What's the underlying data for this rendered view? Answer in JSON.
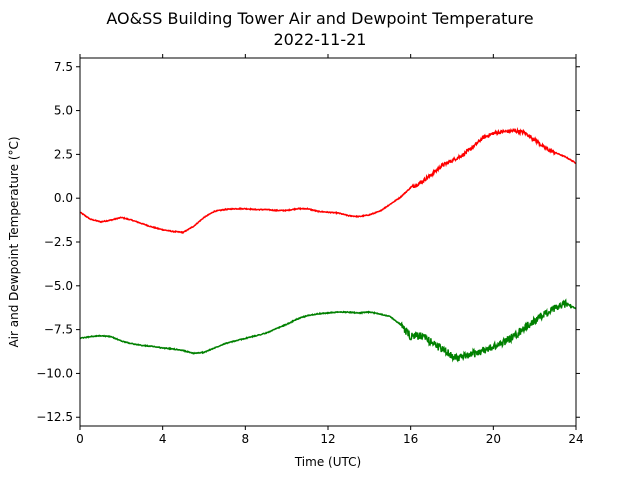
{
  "chart_data": {
    "type": "line",
    "title": "AO&SS Building Tower Air and Dewpoint Temperature",
    "subtitle": "2022-11-21",
    "xlabel": "Time (UTC)",
    "ylabel": "Air and Dewpoint Temperature (°C)",
    "xlim": [
      0,
      24
    ],
    "ylim": [
      -13,
      8
    ],
    "xticks": [
      0,
      4,
      8,
      12,
      16,
      20,
      24
    ],
    "yticks": [
      -12.5,
      -10.0,
      -7.5,
      -5.0,
      -2.5,
      0.0,
      2.5,
      5.0,
      7.5
    ],
    "ytick_labels": [
      "−12.5",
      "−10.0",
      "−7.5",
      "−5.0",
      "−2.5",
      "0.0",
      "2.5",
      "5.0",
      "7.5"
    ],
    "grid": false,
    "series": [
      {
        "color": "#ff0000",
        "points": [
          [
            0,
            -0.8
          ],
          [
            0.5,
            -1.2
          ],
          [
            1,
            -1.35
          ],
          [
            1.5,
            -1.25
          ],
          [
            2,
            -1.1
          ],
          [
            2.5,
            -1.25
          ],
          [
            3,
            -1.45
          ],
          [
            3.5,
            -1.65
          ],
          [
            4,
            -1.8
          ],
          [
            4.5,
            -1.9
          ],
          [
            5,
            -1.95
          ],
          [
            5.5,
            -1.6
          ],
          [
            6,
            -1.1
          ],
          [
            6.5,
            -0.75
          ],
          [
            7,
            -0.65
          ],
          [
            7.5,
            -0.6
          ],
          [
            8,
            -0.6
          ],
          [
            8.5,
            -0.65
          ],
          [
            9,
            -0.65
          ],
          [
            9.5,
            -0.7
          ],
          [
            10,
            -0.7
          ],
          [
            10.5,
            -0.6
          ],
          [
            11,
            -0.6
          ],
          [
            11.5,
            -0.75
          ],
          [
            12,
            -0.8
          ],
          [
            12.5,
            -0.85
          ],
          [
            13,
            -1.0
          ],
          [
            13.5,
            -1.05
          ],
          [
            14,
            -0.95
          ],
          [
            14.5,
            -0.75
          ],
          [
            15,
            -0.35
          ],
          [
            15.5,
            0.05
          ],
          [
            16,
            0.6
          ],
          [
            16.5,
            0.9
          ],
          [
            17,
            1.35
          ],
          [
            17.5,
            1.85
          ],
          [
            18,
            2.15
          ],
          [
            18.5,
            2.45
          ],
          [
            19,
            2.9
          ],
          [
            19.5,
            3.45
          ],
          [
            20,
            3.7
          ],
          [
            20.5,
            3.8
          ],
          [
            21,
            3.85
          ],
          [
            21.5,
            3.75
          ],
          [
            22,
            3.35
          ],
          [
            22.5,
            2.85
          ],
          [
            23,
            2.6
          ],
          [
            23.5,
            2.35
          ],
          [
            24,
            2.0
          ]
        ]
      },
      {
        "color": "#008000",
        "points": [
          [
            0,
            -8.0
          ],
          [
            0.5,
            -7.9
          ],
          [
            1,
            -7.85
          ],
          [
            1.5,
            -7.9
          ],
          [
            2,
            -8.15
          ],
          [
            2.5,
            -8.3
          ],
          [
            3,
            -8.4
          ],
          [
            3.5,
            -8.45
          ],
          [
            4,
            -8.55
          ],
          [
            4.5,
            -8.6
          ],
          [
            5,
            -8.7
          ],
          [
            5.5,
            -8.85
          ],
          [
            6,
            -8.8
          ],
          [
            6.5,
            -8.55
          ],
          [
            7,
            -8.3
          ],
          [
            7.5,
            -8.15
          ],
          [
            8,
            -8.0
          ],
          [
            8.5,
            -7.85
          ],
          [
            9,
            -7.7
          ],
          [
            9.5,
            -7.45
          ],
          [
            10,
            -7.2
          ],
          [
            10.5,
            -6.9
          ],
          [
            11,
            -6.7
          ],
          [
            11.5,
            -6.6
          ],
          [
            12,
            -6.55
          ],
          [
            12.5,
            -6.5
          ],
          [
            13,
            -6.5
          ],
          [
            13.5,
            -6.55
          ],
          [
            14,
            -6.5
          ],
          [
            14.5,
            -6.6
          ],
          [
            15,
            -6.75
          ],
          [
            15.5,
            -7.2
          ],
          [
            16,
            -7.9
          ],
          [
            16.5,
            -7.85
          ],
          [
            17,
            -8.2
          ],
          [
            17.5,
            -8.6
          ],
          [
            18,
            -9.0
          ],
          [
            18.5,
            -9.1
          ],
          [
            19,
            -8.9
          ],
          [
            19.5,
            -8.7
          ],
          [
            20,
            -8.5
          ],
          [
            20.5,
            -8.2
          ],
          [
            21,
            -7.9
          ],
          [
            21.5,
            -7.4
          ],
          [
            22,
            -7.0
          ],
          [
            22.5,
            -6.6
          ],
          [
            23,
            -6.3
          ],
          [
            23.5,
            -6.0
          ],
          [
            24,
            -6.3
          ]
        ]
      }
    ]
  }
}
